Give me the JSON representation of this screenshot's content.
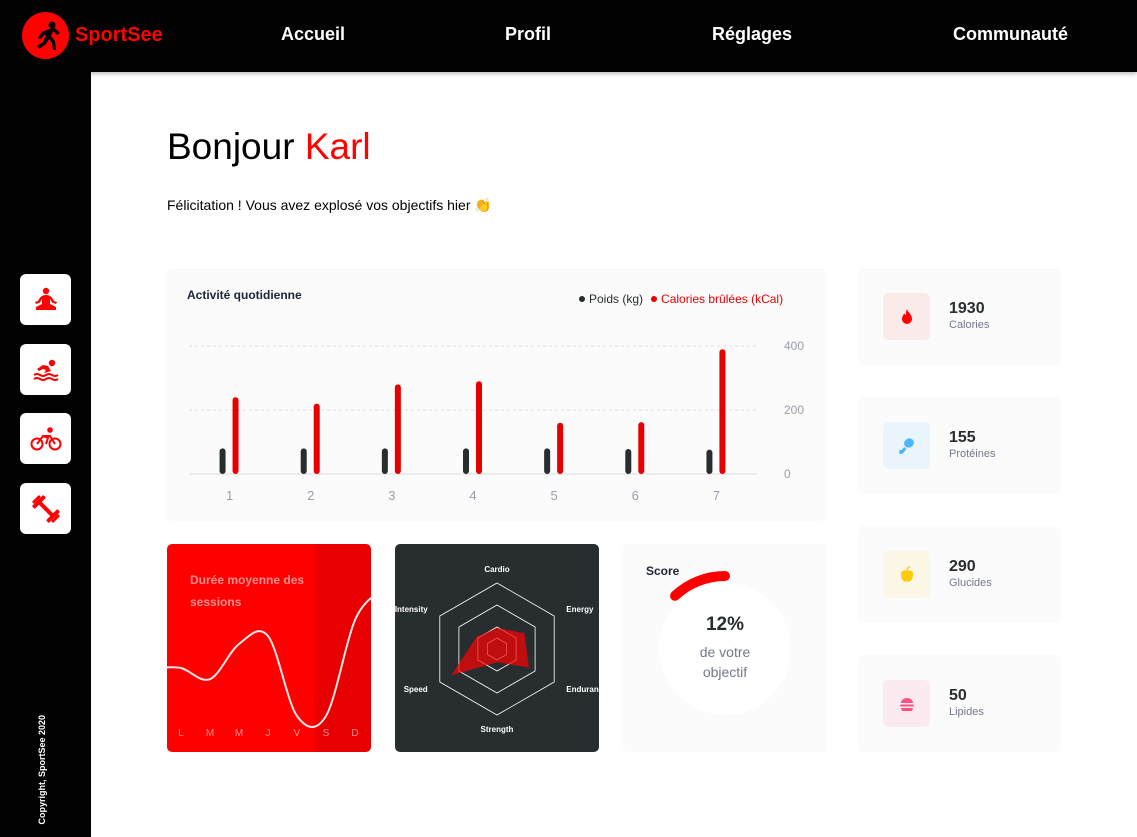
{
  "app": {
    "name": "SportSee"
  },
  "nav": {
    "items": [
      {
        "label": "Accueil"
      },
      {
        "label": "Profil"
      },
      {
        "label": "Réglages"
      },
      {
        "label": "Communauté"
      }
    ]
  },
  "sidebar": {
    "icons": [
      "yoga-icon",
      "swimming-icon",
      "cycling-icon",
      "dumbbell-icon"
    ],
    "copyright": "Copyright, SportSee 2020"
  },
  "header": {
    "greeting": "Bonjour",
    "name": "Karl",
    "message": "Félicitation ! Vous avez explosé vos objectifs hier 👏"
  },
  "activity": {
    "title": "Activité quotidienne",
    "legend_weight": "Poids (kg)",
    "legend_calories": "Calories brûlées (kCal)"
  },
  "sessions": {
    "title": "Durée moyenne des sessions"
  },
  "score": {
    "title": "Score",
    "percent": "12%",
    "label_line1": "de votre",
    "label_line2": "objectif",
    "value": 0.12
  },
  "key_data": [
    {
      "value": "1930",
      "label": "Calories",
      "icon": "fire-icon",
      "bg": "#fbeaea",
      "color": "#ff0000"
    },
    {
      "value": "155",
      "label": "Protéines",
      "icon": "chicken-icon",
      "bg": "#e9f4fb",
      "color": "#4ab8ff"
    },
    {
      "value": "290",
      "label": "Glucides",
      "icon": "apple-icon",
      "bg": "#fbf6e5",
      "color": "#fdcc0c"
    },
    {
      "value": "50",
      "label": "Lipides",
      "icon": "burger-icon",
      "bg": "#fbeaef",
      "color": "#fd5181"
    }
  ],
  "colors": {
    "accent": "#ff0101",
    "dark": "#020203",
    "weight_bar": "#282d30",
    "calorie_bar": "#e60000"
  },
  "chart_data": [
    {
      "type": "bar",
      "categories": [
        "1",
        "2",
        "3",
        "4",
        "5",
        "6",
        "7"
      ],
      "series": [
        {
          "name": "Poids (kg)",
          "values": [
            80,
            80,
            80,
            80,
            80,
            78,
            76
          ]
        },
        {
          "name": "Calories brûlées (kCal)",
          "values": [
            240,
            220,
            280,
            290,
            160,
            162,
            390
          ]
        }
      ],
      "y_ticks": [
        "0",
        "200",
        "400"
      ],
      "ylim": [
        0,
        400
      ]
    },
    {
      "type": "line",
      "x": [
        "L",
        "M",
        "M",
        "J",
        "V",
        "S",
        "D"
      ],
      "values": [
        30,
        23,
        45,
        50,
        0,
        0,
        60
      ]
    },
    {
      "type": "radar",
      "categories": [
        "Cardio",
        "Energy",
        "Endurance",
        "Strength",
        "Speed",
        "Intensity"
      ],
      "values": [
        80,
        120,
        140,
        50,
        200,
        90
      ],
      "max": 250
    }
  ]
}
